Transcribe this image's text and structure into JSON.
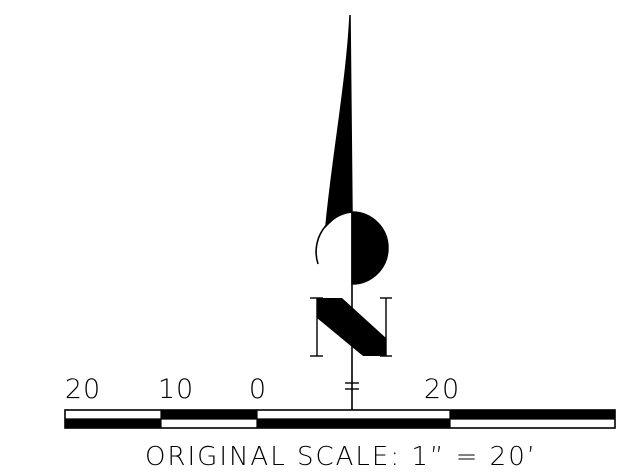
{
  "north_arrow": {
    "letter": "N"
  },
  "scale_bar": {
    "tick_labels": [
      "20",
      "10",
      "0",
      "20"
    ],
    "caption": "ORIGINAL SCALE: 1”  =  20’"
  },
  "colors": {
    "ink": "#000000",
    "paper": "#ffffff"
  }
}
